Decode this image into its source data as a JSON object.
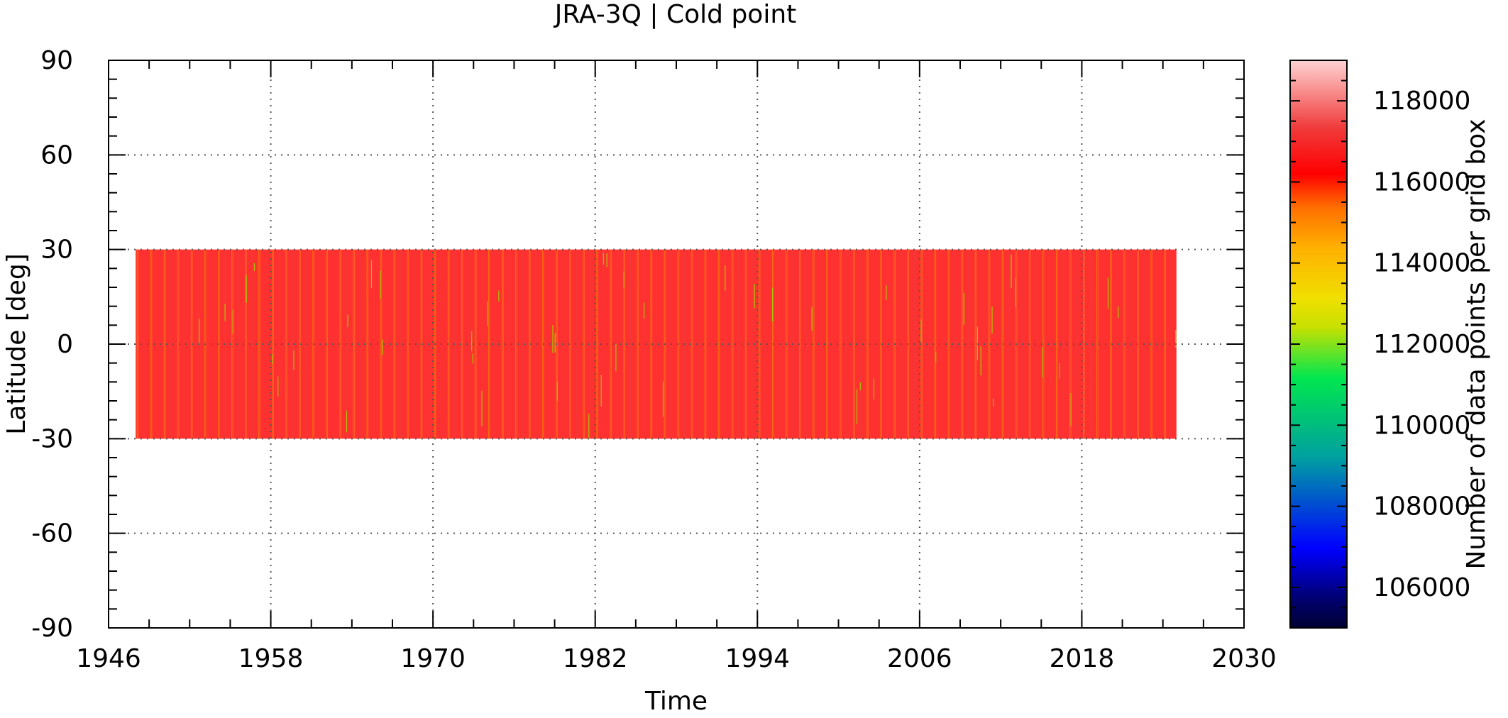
{
  "chart_data": {
    "type": "heatmap",
    "title": "JRA-3Q | Cold point",
    "xlabel": "Time",
    "ylabel": "Latitude [deg]",
    "colorbar_label": "Number of data points per grid box",
    "xlim": [
      1946,
      2030
    ],
    "ylim": [
      -90,
      90
    ],
    "x_ticks": [
      1946,
      1958,
      1970,
      1982,
      1994,
      2006,
      2018,
      2030
    ],
    "y_ticks": [
      90,
      60,
      30,
      0,
      -30,
      -60,
      -90
    ],
    "x_tick_labels": [
      "1946",
      "1958",
      "1970",
      "1982",
      "1994",
      "2006",
      "2018",
      "2030"
    ],
    "y_tick_labels": [
      "90",
      "60",
      "30",
      "0",
      "-30",
      "-60",
      "-90"
    ],
    "colorbar_range": [
      105000,
      119000
    ],
    "colorbar_ticks": [
      106000,
      108000,
      110000,
      112000,
      114000,
      116000,
      118000
    ],
    "colorbar_tick_labels": [
      "106000",
      "108000",
      "110000",
      "112000",
      "114000",
      "116000",
      "118000"
    ],
    "colormap": [
      "#000040",
      "#0000ff",
      "#00a0a0",
      "#00e040",
      "#f0e000",
      "#ff8000",
      "#ff0000",
      "#ffc8c8"
    ],
    "data_band": {
      "time_start": 1948,
      "time_end": 2025,
      "lat_min": -30,
      "lat_max": 30,
      "typical_value": 117000,
      "min_value": 110000,
      "max_value": 118000,
      "temporal_resolution": "monthly"
    },
    "grid": true,
    "grid_style": "dotted"
  }
}
